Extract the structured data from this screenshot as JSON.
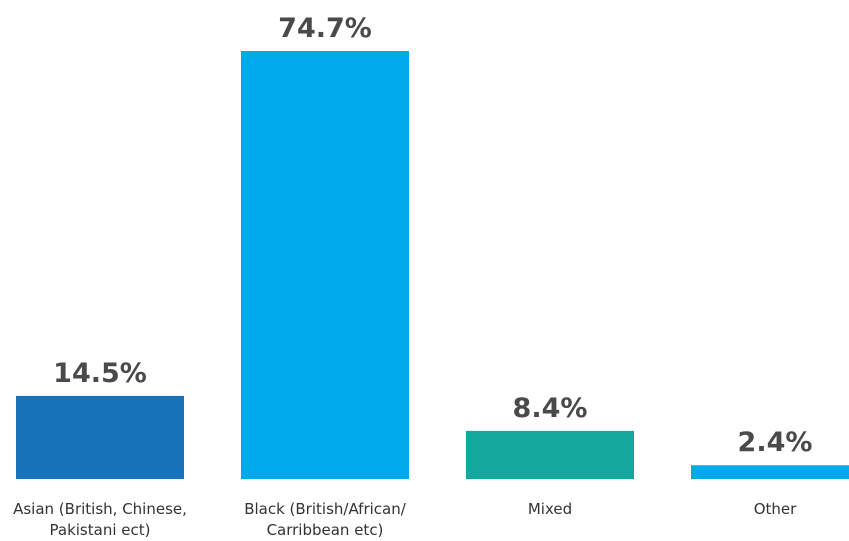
{
  "chart_data": {
    "type": "bar",
    "categories": [
      [
        "Asian (British, Chinese,",
        "Pakistani ect)"
      ],
      [
        "Black (British/African/",
        "Carribbean etc)"
      ],
      [
        "Mixed"
      ],
      [
        "Other"
      ]
    ],
    "values": [
      14.5,
      74.7,
      8.4,
      2.4
    ],
    "value_labels": [
      "14.5%",
      "74.7%",
      "8.4%",
      "2.4%"
    ],
    "colors": [
      "#1872b9",
      "#00aaeb",
      "#13a89e",
      "#00aaeb"
    ],
    "ylim": [
      0,
      74.7
    ],
    "grid": false,
    "legend": "none"
  }
}
